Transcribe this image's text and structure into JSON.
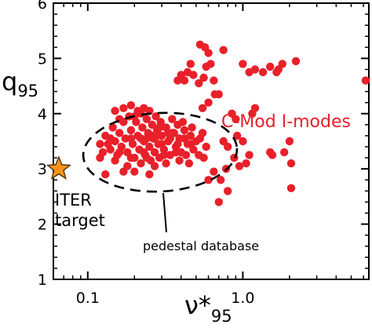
{
  "chart_data": {
    "type": "scatter",
    "title": "",
    "xlabel": "ν*",
    "xlabel_sub": "95",
    "ylabel": "q",
    "ylabel_sub": "95",
    "xscale": "log",
    "xlim": [
      0.06,
      6.5
    ],
    "ylim": [
      1,
      6
    ],
    "yticks": [
      1,
      2,
      3,
      4,
      5,
      6
    ],
    "yticklabels": [
      "1",
      "2",
      "3",
      "4",
      "5",
      "6"
    ],
    "xticks": [
      0.1,
      1.0
    ],
    "xticklabels": [
      "0.1",
      "1.0"
    ],
    "colors": {
      "points": "#e8202a",
      "star_fill": "#f7941d",
      "star_edge": "#5a3a10",
      "label": "#e8202a"
    },
    "series": [
      {
        "name": "C-Mod I-modes",
        "marker": "circle",
        "color": "#e8202a",
        "points": [
          [
            0.12,
            3.45
          ],
          [
            0.125,
            3.3
          ],
          [
            0.13,
            3.6
          ],
          [
            0.135,
            3.45
          ],
          [
            0.14,
            3.35
          ],
          [
            0.145,
            3.75
          ],
          [
            0.15,
            3.5
          ],
          [
            0.155,
            3.25
          ],
          [
            0.16,
            3.65
          ],
          [
            0.165,
            3.4
          ],
          [
            0.17,
            3.85
          ],
          [
            0.175,
            3.55
          ],
          [
            0.18,
            3.3
          ],
          [
            0.185,
            3.95
          ],
          [
            0.19,
            3.7
          ],
          [
            0.195,
            3.45
          ],
          [
            0.2,
            3.2
          ],
          [
            0.205,
            3.85
          ],
          [
            0.21,
            3.6
          ],
          [
            0.215,
            3.35
          ],
          [
            0.22,
            4.0
          ],
          [
            0.225,
            3.75
          ],
          [
            0.23,
            3.5
          ],
          [
            0.235,
            3.25
          ],
          [
            0.24,
            3.9
          ],
          [
            0.245,
            3.65
          ],
          [
            0.25,
            3.4
          ],
          [
            0.255,
            3.15
          ],
          [
            0.26,
            3.8
          ],
          [
            0.265,
            3.55
          ],
          [
            0.27,
            3.3
          ],
          [
            0.275,
            3.95
          ],
          [
            0.28,
            3.7
          ],
          [
            0.285,
            3.45
          ],
          [
            0.29,
            3.2
          ],
          [
            0.295,
            3.85
          ],
          [
            0.3,
            3.6
          ],
          [
            0.31,
            3.35
          ],
          [
            0.32,
            3.75
          ],
          [
            0.33,
            3.5
          ],
          [
            0.34,
            3.25
          ],
          [
            0.35,
            3.9
          ],
          [
            0.36,
            3.65
          ],
          [
            0.37,
            3.4
          ],
          [
            0.38,
            3.8
          ],
          [
            0.39,
            3.55
          ],
          [
            0.4,
            3.3
          ],
          [
            0.42,
            3.7
          ],
          [
            0.44,
            3.45
          ],
          [
            0.46,
            3.6
          ],
          [
            0.48,
            3.35
          ],
          [
            0.5,
            3.5
          ],
          [
            0.52,
            3.25
          ],
          [
            0.55,
            3.65
          ],
          [
            0.58,
            3.4
          ],
          [
            0.15,
            4.05
          ],
          [
            0.17,
            4.1
          ],
          [
            0.19,
            4.15
          ],
          [
            0.21,
            4.05
          ],
          [
            0.23,
            4.1
          ],
          [
            0.25,
            4.05
          ],
          [
            0.18,
            3.05
          ],
          [
            0.22,
            3.1
          ],
          [
            0.27,
            3.05
          ],
          [
            0.32,
            3.1
          ],
          [
            0.2,
            2.95
          ],
          [
            0.25,
            2.9
          ],
          [
            0.13,
            2.9
          ],
          [
            0.17,
            2.95
          ],
          [
            0.22,
            3.55
          ],
          [
            0.26,
            3.6
          ],
          [
            0.3,
            3.45
          ],
          [
            0.34,
            3.55
          ],
          [
            0.38,
            3.45
          ],
          [
            0.42,
            3.55
          ],
          [
            0.46,
            3.45
          ],
          [
            0.14,
            3.55
          ],
          [
            0.16,
            3.3
          ],
          [
            0.19,
            3.55
          ],
          [
            0.23,
            3.3
          ],
          [
            0.28,
            3.6
          ],
          [
            0.33,
            3.65
          ],
          [
            0.37,
            3.3
          ],
          [
            0.43,
            3.25
          ],
          [
            0.16,
            3.9
          ],
          [
            0.2,
            3.95
          ],
          [
            0.24,
            3.55
          ],
          [
            0.29,
            3.75
          ],
          [
            0.35,
            3.65
          ],
          [
            0.41,
            3.85
          ],
          [
            0.47,
            3.75
          ],
          [
            0.53,
            3.55
          ],
          [
            0.12,
            3.2
          ],
          [
            0.15,
            3.15
          ],
          [
            0.19,
            3.2
          ],
          [
            0.24,
            3.2
          ],
          [
            0.31,
            3.25
          ],
          [
            0.39,
            3.15
          ],
          [
            0.45,
            3.1
          ],
          [
            0.56,
            3.2
          ],
          [
            0.42,
            4.6
          ],
          [
            0.44,
            4.75
          ],
          [
            0.46,
            4.9
          ],
          [
            0.48,
            4.7
          ],
          [
            0.53,
            5.25
          ],
          [
            0.57,
            5.2
          ],
          [
            0.6,
            5.1
          ],
          [
            0.62,
            4.9
          ],
          [
            0.58,
            4.85
          ],
          [
            0.56,
            4.65
          ],
          [
            0.75,
            5.15
          ],
          [
            0.65,
            4.6
          ],
          [
            0.52,
            4.55
          ],
          [
            0.4,
            4.7
          ],
          [
            0.38,
            4.6
          ],
          [
            1.0,
            4.9
          ],
          [
            1.1,
            4.75
          ],
          [
            1.2,
            4.8
          ],
          [
            1.35,
            4.75
          ],
          [
            1.5,
            4.85
          ],
          [
            1.7,
            4.8
          ],
          [
            1.8,
            4.9
          ],
          [
            2.2,
            4.95
          ],
          [
            1.65,
            4.75
          ],
          [
            0.85,
            4.0
          ],
          [
            0.9,
            3.9
          ],
          [
            0.92,
            3.6
          ],
          [
            0.8,
            3.4
          ],
          [
            1.0,
            3.5
          ],
          [
            1.1,
            3.25
          ],
          [
            0.88,
            3.2
          ],
          [
            0.95,
            3.05
          ],
          [
            1.05,
            3.1
          ],
          [
            1.2,
            4.1
          ],
          [
            1.15,
            4.0
          ],
          [
            1.5,
            3.3
          ],
          [
            1.55,
            3.25
          ],
          [
            1.85,
            3.3
          ],
          [
            2.0,
            3.5
          ],
          [
            2.05,
            3.1
          ],
          [
            0.78,
            3.0
          ],
          [
            0.72,
            2.8
          ],
          [
            0.6,
            2.8
          ],
          [
            0.65,
            2.95
          ],
          [
            0.8,
            2.6
          ],
          [
            0.7,
            2.4
          ],
          [
            2.05,
            2.65
          ],
          [
            0.66,
            4.35
          ],
          [
            0.7,
            4.35
          ],
          [
            0.6,
            4.2
          ],
          [
            0.55,
            4.1
          ],
          [
            6.2,
            4.6
          ],
          [
            0.75,
            3.5
          ]
        ]
      }
    ],
    "iter_target": {
      "x": 0.065,
      "y": 3.0,
      "label_line1": "ITER",
      "label_line2": "target"
    },
    "ellipse": {
      "label": "pedestal database"
    },
    "annotation_series_label": "C-Mod I-modes"
  }
}
